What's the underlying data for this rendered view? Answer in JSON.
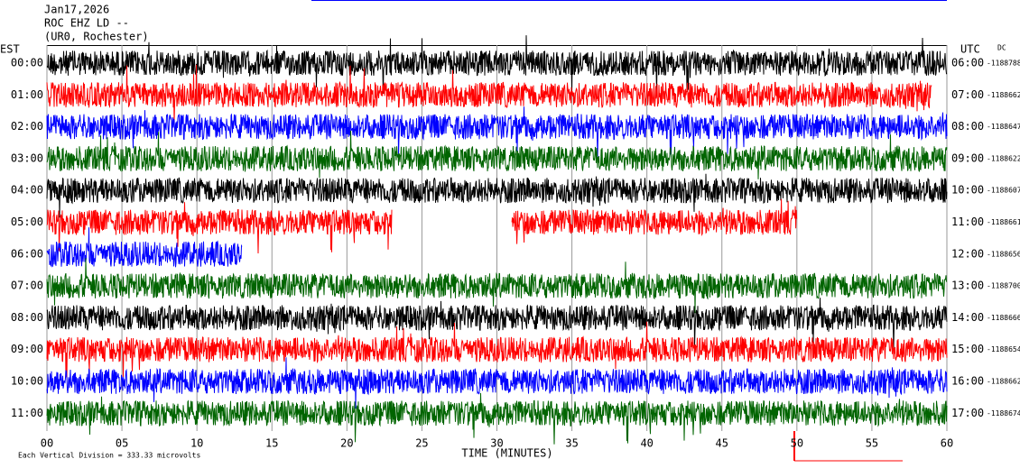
{
  "chart_data": {
    "type": "helicorder",
    "title_lines": [
      "Jan17,2026",
      "ROC EHZ LD --",
      "(UR0, Rochester)"
    ],
    "left_axis_label": "EST",
    "right_axis_label": "UTC",
    "dc_label": "DC",
    "x_label": "TIME (MINUTES)",
    "footer": "Each Vertical Division =  333.33 microvolts",
    "xlim": [
      0,
      60
    ],
    "xticks": [
      {
        "value": 0,
        "label": "00"
      },
      {
        "value": 5,
        "label": "05"
      },
      10,
      15,
      20,
      25,
      30,
      35,
      40,
      45,
      50,
      55,
      60
    ],
    "colors": [
      "#000000",
      "#ff0000",
      "#0000ff",
      "#006400"
    ],
    "rows": [
      {
        "left": "00:00",
        "right": "06:00",
        "dc": "-1188788",
        "segments": [
          [
            0,
            60
          ]
        ]
      },
      {
        "left": "01:00",
        "right": "07:00",
        "dc": "-1188662",
        "segments": [
          [
            0,
            59
          ]
        ]
      },
      {
        "left": "02:00",
        "right": "08:00",
        "dc": "-1188647",
        "segments": [
          [
            0,
            60
          ]
        ]
      },
      {
        "left": "03:00",
        "right": "09:00",
        "dc": "-1188622",
        "segments": [
          [
            0,
            60
          ]
        ]
      },
      {
        "left": "04:00",
        "right": "10:00",
        "dc": "-1188607",
        "segments": [
          [
            0,
            60
          ]
        ]
      },
      {
        "left": "05:00",
        "right": "11:00",
        "dc": "-1188661",
        "segments": [
          [
            0,
            23
          ],
          [
            31,
            50
          ]
        ]
      },
      {
        "left": "06:00",
        "right": "12:00",
        "dc": "-1188656",
        "segments": [
          [
            0,
            13
          ]
        ]
      },
      {
        "left": "07:00",
        "right": "13:00",
        "dc": "-1188700",
        "segments": [
          [
            0,
            60
          ]
        ]
      },
      {
        "left": "08:00",
        "right": "14:00",
        "dc": "-1188666",
        "segments": [
          [
            0,
            60
          ]
        ]
      },
      {
        "left": "09:00",
        "right": "15:00",
        "dc": "-1188654",
        "segments": [
          [
            0,
            60
          ]
        ]
      },
      {
        "left": "10:00",
        "right": "16:00",
        "dc": "-1188662",
        "segments": [
          [
            0,
            60
          ]
        ]
      },
      {
        "left": "11:00",
        "right": "17:00",
        "dc": "-1188674",
        "segments": [
          [
            0,
            60
          ]
        ]
      }
    ]
  }
}
